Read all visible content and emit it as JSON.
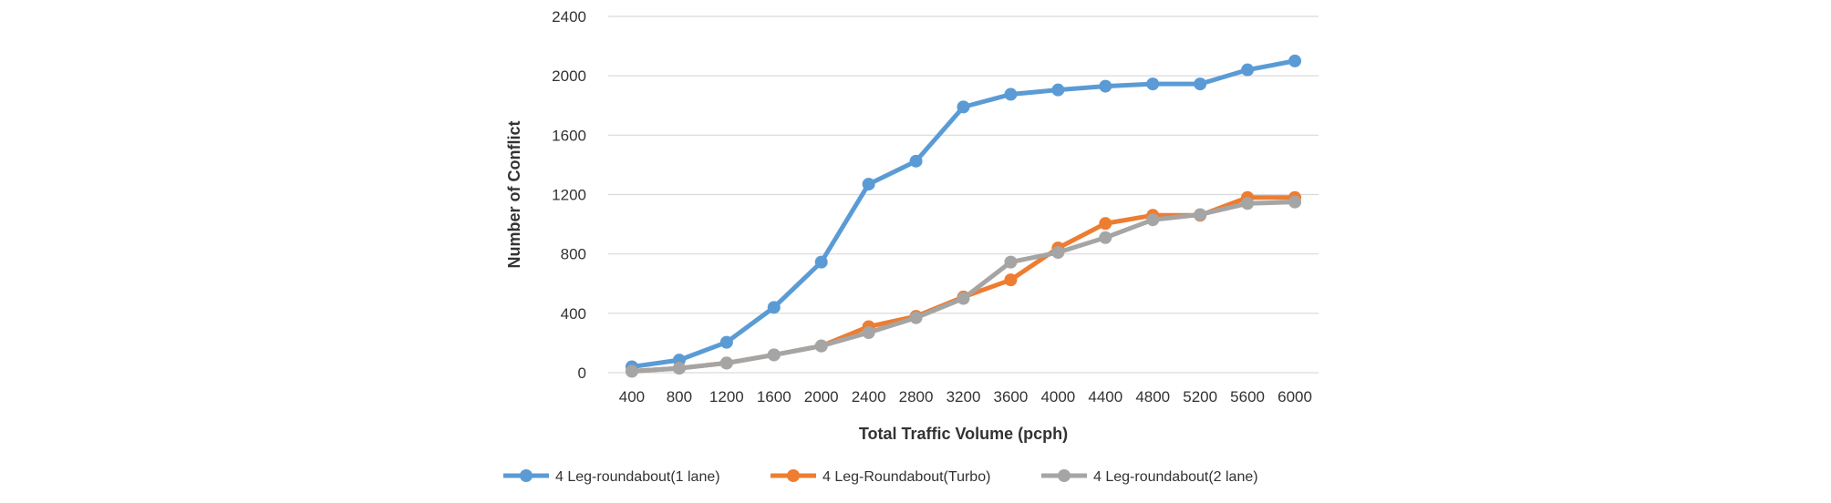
{
  "chart_data": {
    "type": "line",
    "title": "",
    "xlabel": "Total Traffic Volume (pcph)",
    "ylabel": "Number of Conflict",
    "categories": [
      "400",
      "800",
      "1200",
      "1600",
      "2000",
      "2400",
      "2800",
      "3200",
      "3600",
      "4000",
      "4400",
      "4800",
      "5200",
      "5600",
      "6000"
    ],
    "ylim": [
      0,
      2400
    ],
    "yticks": [
      0,
      400,
      800,
      1200,
      1600,
      2000,
      2400
    ],
    "grid": "horizontal",
    "legend_position": "bottom",
    "series": [
      {
        "name": "4 Leg-roundabout(1 lane)",
        "color": "#5B9BD5",
        "values": [
          40,
          85,
          205,
          440,
          745,
          1270,
          1425,
          1790,
          1875,
          1905,
          1930,
          1945,
          1945,
          2040,
          2100
        ]
      },
      {
        "name": "4 Leg-Roundabout(Turbo)",
        "color": "#ED7D31",
        "values": [
          10,
          30,
          65,
          120,
          180,
          310,
          380,
          510,
          625,
          840,
          1005,
          1060,
          1060,
          1180,
          1180
        ]
      },
      {
        "name": "4 Leg-roundabout(2 lane)",
        "color": "#A5A5A5",
        "values": [
          10,
          30,
          65,
          120,
          180,
          270,
          370,
          500,
          745,
          810,
          910,
          1030,
          1065,
          1140,
          1150
        ]
      }
    ]
  }
}
